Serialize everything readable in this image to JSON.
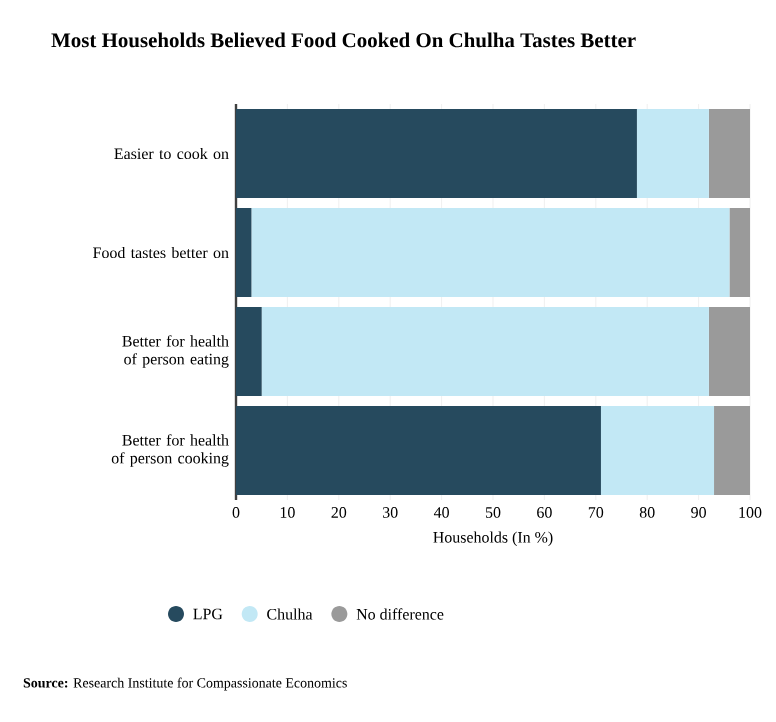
{
  "chart_data": {
    "type": "bar",
    "orientation": "horizontal",
    "stacked": true,
    "title": "Most Households Believed Food Cooked On Chulha Tastes Better",
    "categories": [
      "Easier to cook on",
      "Food tastes better on",
      "Better for health of person eating",
      "Better for health of person cooking"
    ],
    "series": [
      {
        "name": "LPG",
        "color": "#264a5e",
        "values": [
          78,
          3,
          5,
          71
        ]
      },
      {
        "name": "Chulha",
        "color": "#c2e8f5",
        "values": [
          14,
          93,
          87,
          22
        ]
      },
      {
        "name": "No difference",
        "color": "#9a9a9a",
        "values": [
          8,
          4,
          8,
          7
        ]
      }
    ],
    "xlim": [
      0,
      100
    ],
    "xticks": [
      0,
      10,
      20,
      30,
      40,
      50,
      60,
      70,
      80,
      90,
      100
    ],
    "xlabel": "Households (In %)",
    "grid": "x",
    "legend": "bottom",
    "annotations": [
      "**Source:** Research Institute for Compassionate Economics"
    ]
  }
}
